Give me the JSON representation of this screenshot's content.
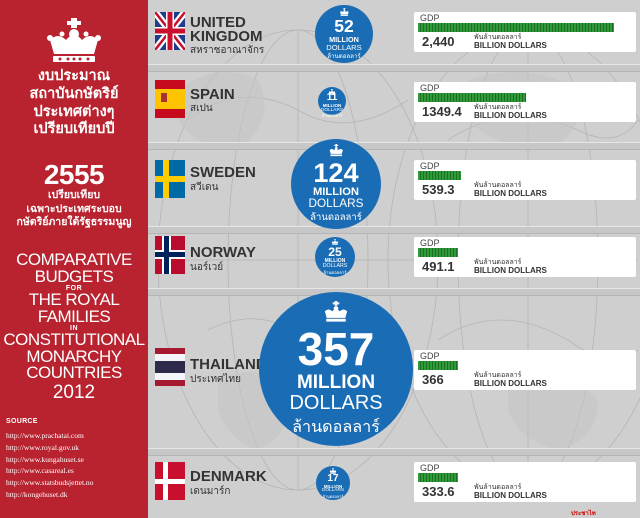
{
  "left_panel": {
    "th_title": [
      "งบประมาณ",
      "สถาบันกษัตริย์",
      "ประเทศต่างๆ",
      "เปรียบเทียบปี"
    ],
    "th_year": "2555",
    "th_subtitle": [
      "เปรียบเทียบ",
      "เฉพาะประเทศระบอบ",
      "กษัตริย์ภายใต้รัฐธรรมนูญ"
    ],
    "en_title": {
      "line1": "COMPARATIVE",
      "line2": "BUDGETS",
      "for": "FOR",
      "line3": "THE ROYAL",
      "line4": "FAMILIES",
      "in": "IN",
      "line5": "CONSTITUTIONAL",
      "line6": "MONARCHY",
      "line7": "COUNTRIES",
      "year": "2012"
    },
    "source_label": "SOURCE",
    "sources": [
      "http://www.prachatai.com",
      "http://www.royal.gov.uk",
      "http://www.kungahuset.se",
      "http://www.casareal.es",
      "http://www.statsbudsjettet.no",
      "http://kongehuset.dk"
    ]
  },
  "chart_data": {
    "type": "bubble",
    "budget_unit_en_1": "MILLION",
    "budget_unit_en_2": "DOLLARS",
    "budget_unit_th": "ล้านดอลลาร์",
    "gdp_label": "GDP",
    "gdp_unit_th": "พันล้านดอลลาร์",
    "gdp_unit_en": "BILLION DOLLARS",
    "countries": [
      {
        "name": "UNITED KINGDOM",
        "name_line1": "UNITED",
        "name_line2": "KINGDOM",
        "name_th": "สหราชอาณาจักร",
        "budget": 52,
        "gdp": 2440,
        "gdp_text": "2,440",
        "flag": "uk-flag"
      },
      {
        "name": "SPAIN",
        "name_line1": "SPAIN",
        "name_line2": "",
        "name_th": "สเปน",
        "budget": 11,
        "gdp": 1349.4,
        "gdp_text": "1349.4",
        "flag": "spain-flag"
      },
      {
        "name": "SWEDEN",
        "name_line1": "SWEDEN",
        "name_line2": "",
        "name_th": "สวีเดน",
        "budget": 124,
        "gdp": 539.3,
        "gdp_text": "539.3",
        "flag": "sweden-flag"
      },
      {
        "name": "NORWAY",
        "name_line1": "NORWAY",
        "name_line2": "",
        "name_th": "นอร์เวย์",
        "budget": 25,
        "gdp": 491.1,
        "gdp_text": "491.1",
        "flag": "norway-flag"
      },
      {
        "name": "THAILAND",
        "name_line1": "THAILAND",
        "name_line2": "",
        "name_th": "ประเทศไทย",
        "budget": 357,
        "gdp": 366,
        "gdp_text": "366",
        "flag": "thailand-flag"
      },
      {
        "name": "DENMARK",
        "name_line1": "DENMARK",
        "name_line2": "",
        "name_th": "เดนมาร์ก",
        "budget": 17,
        "gdp": 333.6,
        "gdp_text": "333.6",
        "flag": "denmark-flag"
      }
    ]
  },
  "footer": {
    "logo_text": "ประชาไท PRACHATAI.COM"
  },
  "colors": {
    "red_panel": "#b8232f",
    "bubble_blue": "#1a6db5",
    "gdp_green": "#27822f"
  }
}
